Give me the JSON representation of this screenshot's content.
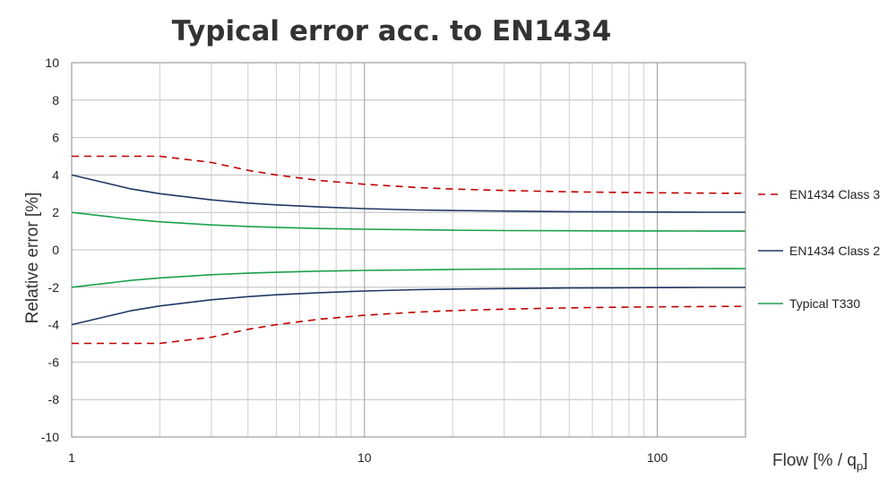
{
  "chart_data": {
    "type": "line",
    "title": "Typical error acc. to EN1434",
    "xlabel": "Flow [% / q",
    "xlabel_sub": "p",
    "xlabel_end": "]",
    "ylabel": "Relative error [%]",
    "x_scale": "log",
    "xlim": [
      1,
      200
    ],
    "ylim": [
      -10,
      10
    ],
    "x_ticks": [
      1,
      10,
      100
    ],
    "x_tick_labels": [
      "1",
      "10",
      "100"
    ],
    "y_ticks": [
      -10,
      -8,
      -6,
      -4,
      -2,
      0,
      2,
      4,
      6,
      8,
      10
    ],
    "y_tick_labels": [
      "-10",
      "-8",
      "-6",
      "-4",
      "-2",
      "0",
      "2",
      "4",
      "6",
      "8",
      "10"
    ],
    "grid": true,
    "legend_position": "right",
    "x": [
      1,
      1.6,
      2,
      3,
      4,
      5,
      7,
      10,
      15,
      20,
      30,
      50,
      70,
      100,
      150,
      200
    ],
    "series": [
      {
        "name": "EN1434 Class 3",
        "color": "#c00000",
        "dash": true,
        "values": [
          5,
          5,
          5,
          4.67,
          4.25,
          4.0,
          3.71,
          3.5,
          3.33,
          3.25,
          3.17,
          3.1,
          3.07,
          3.05,
          3.03,
          3.02
        ],
        "mirror": true
      },
      {
        "name": "EN1434 Class 2",
        "color": "#1f3864",
        "dash": false,
        "values": [
          4.0,
          3.25,
          3.0,
          2.67,
          2.5,
          2.4,
          2.29,
          2.2,
          2.13,
          2.1,
          2.07,
          2.04,
          2.03,
          2.02,
          2.01,
          2.01
        ],
        "mirror": true
      },
      {
        "name": "Typical T330",
        "color": "#1aa14a",
        "dash": false,
        "values": [
          2.0,
          1.63,
          1.5,
          1.33,
          1.25,
          1.2,
          1.14,
          1.1,
          1.07,
          1.05,
          1.03,
          1.02,
          1.01,
          1.01,
          1.0,
          1.0
        ],
        "mirror": true
      }
    ]
  }
}
